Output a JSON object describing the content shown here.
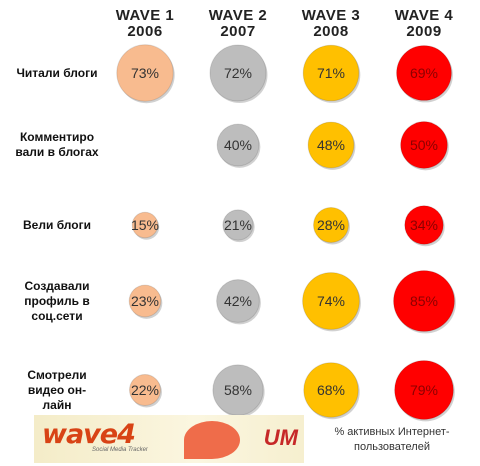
{
  "chart_data": {
    "type": "table",
    "columns": [
      {
        "wave": "WAVE 1",
        "year": "2006"
      },
      {
        "wave": "WAVE 2",
        "year": "2007"
      },
      {
        "wave": "WAVE 3",
        "year": "2008"
      },
      {
        "wave": "WAVE 4",
        "year": "2009"
      }
    ],
    "series_colors": [
      "#f8bb8f",
      "#bdbdbd",
      "#ffc000",
      "#ff0000"
    ],
    "rows": [
      {
        "label": [
          "Читали блоги"
        ],
        "values": [
          73,
          72,
          71,
          69
        ]
      },
      {
        "label": [
          "Комментиро",
          "вали в блогах"
        ],
        "values": [
          null,
          40,
          48,
          50
        ]
      },
      {
        "label": [
          "Вели блоги"
        ],
        "values": [
          15,
          21,
          28,
          34
        ]
      },
      {
        "label": [
          "Создавали",
          "профиль в",
          "соц.сети"
        ],
        "values": [
          23,
          42,
          74,
          85
        ]
      },
      {
        "label": [
          "Смотрели",
          "видео он-",
          "лайн"
        ],
        "values": [
          22,
          58,
          68,
          79
        ]
      }
    ],
    "unit_suffix": "%",
    "footnote": [
      "% активных Интернет-",
      "пользователей"
    ]
  },
  "banner": {
    "logo_text": "wave4",
    "tagline": "Social Media Tracker",
    "brand": "UM"
  }
}
